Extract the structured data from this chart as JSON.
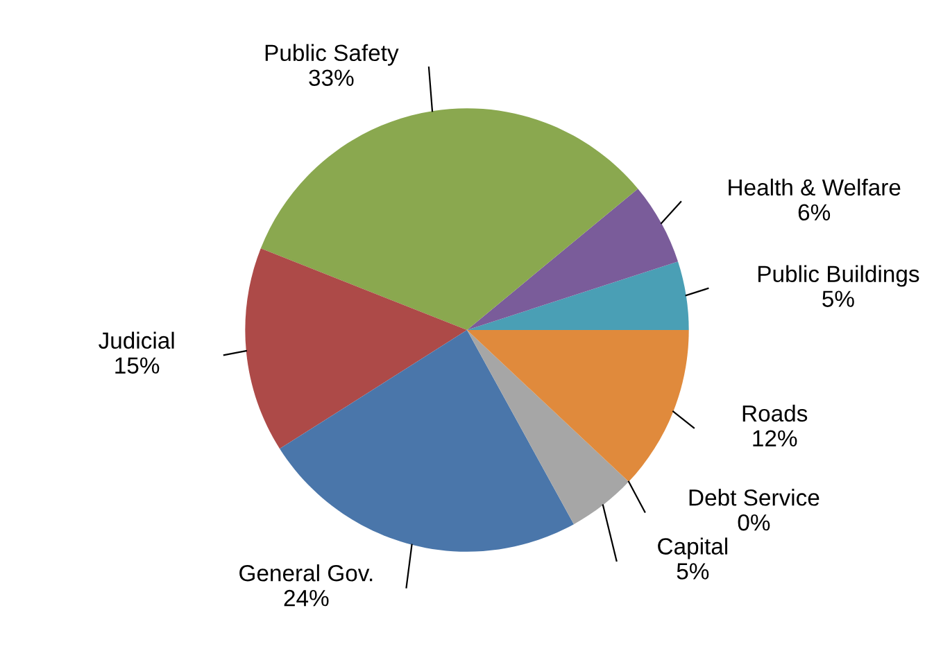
{
  "chart_data": {
    "type": "pie",
    "categories": [
      "Public Buildings",
      "Health & Welfare",
      "Public Safety",
      "Judicial",
      "General Gov.",
      "Capital",
      "Debt Service",
      "Roads"
    ],
    "values": [
      5,
      6,
      33,
      15,
      24,
      5,
      0,
      12
    ],
    "value_labels": [
      "5%",
      "6%",
      "33%",
      "15%",
      "24%",
      "5%",
      "0%",
      "12%"
    ],
    "colors": [
      "#4a9fb5",
      "#7a5c9a",
      "#8aa84f",
      "#ad4a48",
      "#4a76aa",
      "#a6a6a6",
      "#404040",
      "#e08a3c"
    ]
  }
}
